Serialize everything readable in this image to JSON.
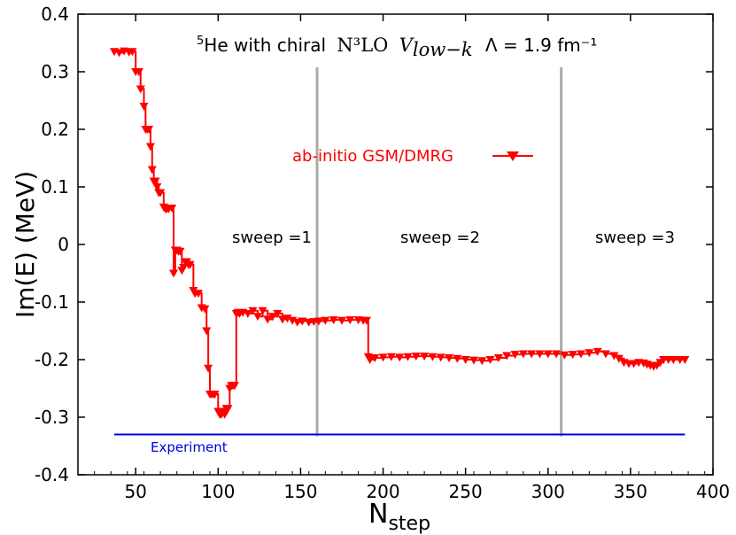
{
  "chart_data": {
    "type": "line",
    "title": {
      "superscript": "5",
      "prefix": "He with chiral",
      "interaction": "N³LO",
      "potential": "V",
      "potential_subscript": "low−k",
      "cutoff": "Λ = 1.9 fm⁻¹"
    },
    "xlabel": "N",
    "xlabel_subscript": "step",
    "ylabel": "Im(E) (MeV)",
    "xlim": [
      15,
      400
    ],
    "ylim": [
      -0.4,
      0.4
    ],
    "x_ticks": [
      50,
      100,
      150,
      200,
      250,
      300,
      350,
      400
    ],
    "y_ticks": [
      0.4,
      0.3,
      0.2,
      0.1,
      0,
      -0.1,
      -0.2,
      -0.3,
      -0.4
    ],
    "y_tick_labels": [
      "0.4",
      "0.3",
      "0.2",
      "0.1",
      "0",
      "-0.1",
      "-0.2",
      "-0.3",
      "-0.4"
    ],
    "grid": false,
    "series": [
      {
        "name": "ab-initio GSM/DMRG",
        "color": "#ff0000",
        "marker": "triangle-down",
        "x": [
          37,
          40,
          43,
          46,
          48,
          50,
          52,
          53,
          55,
          56,
          57,
          58,
          59,
          60,
          61,
          62,
          63,
          64,
          65,
          67,
          68,
          69,
          70,
          72,
          73,
          74,
          75,
          76,
          77,
          78,
          79,
          80,
          81,
          82,
          83,
          85,
          86,
          88,
          90,
          92,
          93,
          94,
          95,
          96,
          97,
          98,
          100,
          101,
          102,
          103,
          104,
          105,
          106,
          107,
          108,
          109,
          110,
          111,
          112,
          113,
          115,
          118,
          121,
          124,
          127,
          130,
          133,
          136,
          139,
          142,
          145,
          148,
          151,
          155,
          158,
          161,
          165,
          170,
          175,
          180,
          185,
          188,
          190,
          191,
          192,
          195,
          200,
          205,
          210,
          215,
          220,
          225,
          230,
          235,
          240,
          245,
          250,
          255,
          260,
          265,
          270,
          275,
          280,
          285,
          290,
          295,
          300,
          305,
          310,
          315,
          320,
          325,
          330,
          335,
          340,
          343,
          346,
          349,
          352,
          355,
          358,
          360,
          362,
          364,
          366,
          368,
          370,
          373,
          376,
          380,
          383
        ],
        "y": [
          0.335,
          0.333,
          0.336,
          0.334,
          0.335,
          0.3,
          0.3,
          0.27,
          0.24,
          0.2,
          0.2,
          0.2,
          0.17,
          0.13,
          0.11,
          0.11,
          0.1,
          0.09,
          0.09,
          0.065,
          0.062,
          0.062,
          0.062,
          0.063,
          -0.05,
          -0.01,
          -0.01,
          -0.012,
          -0.012,
          -0.045,
          -0.04,
          -0.03,
          -0.03,
          -0.035,
          -0.035,
          -0.08,
          -0.085,
          -0.085,
          -0.11,
          -0.112,
          -0.15,
          -0.215,
          -0.26,
          -0.26,
          -0.26,
          -0.26,
          -0.29,
          -0.295,
          -0.295,
          -0.29,
          -0.295,
          -0.285,
          -0.285,
          -0.25,
          -0.245,
          -0.245,
          -0.245,
          -0.12,
          -0.118,
          -0.12,
          -0.118,
          -0.12,
          -0.115,
          -0.125,
          -0.115,
          -0.13,
          -0.125,
          -0.12,
          -0.13,
          -0.128,
          -0.132,
          -0.135,
          -0.133,
          -0.135,
          -0.134,
          -0.133,
          -0.132,
          -0.131,
          -0.132,
          -0.131,
          -0.131,
          -0.132,
          -0.132,
          -0.195,
          -0.2,
          -0.197,
          -0.196,
          -0.195,
          -0.196,
          -0.195,
          -0.194,
          -0.194,
          -0.195,
          -0.196,
          -0.197,
          -0.198,
          -0.2,
          -0.201,
          -0.202,
          -0.2,
          -0.197,
          -0.193,
          -0.191,
          -0.19,
          -0.19,
          -0.19,
          -0.19,
          -0.19,
          -0.192,
          -0.191,
          -0.19,
          -0.188,
          -0.186,
          -0.19,
          -0.193,
          -0.198,
          -0.205,
          -0.207,
          -0.207,
          -0.205,
          -0.206,
          -0.208,
          -0.21,
          -0.212,
          -0.21,
          -0.205,
          -0.2,
          -0.2,
          -0.2,
          -0.2,
          -0.2
        ]
      },
      {
        "name": "Experiment",
        "color": "#0000dd",
        "marker": "none",
        "x": [
          37,
          383
        ],
        "y": [
          -0.33,
          -0.33
        ]
      }
    ],
    "sweep_boundaries": [
      160,
      308
    ],
    "sweep_boundary_color": "#aaaaaa",
    "annotations": [
      {
        "text": "sweep =1",
        "x": 110,
        "y": 0.0
      },
      {
        "text": "sweep =2",
        "x": 230,
        "y": 0.0
      },
      {
        "text": "sweep =3",
        "x": 348,
        "y": 0.0
      }
    ],
    "legend": {
      "label": "ab-initio GSM/DMRG",
      "position": "upper-middle"
    },
    "experiment_label": "Experiment"
  }
}
